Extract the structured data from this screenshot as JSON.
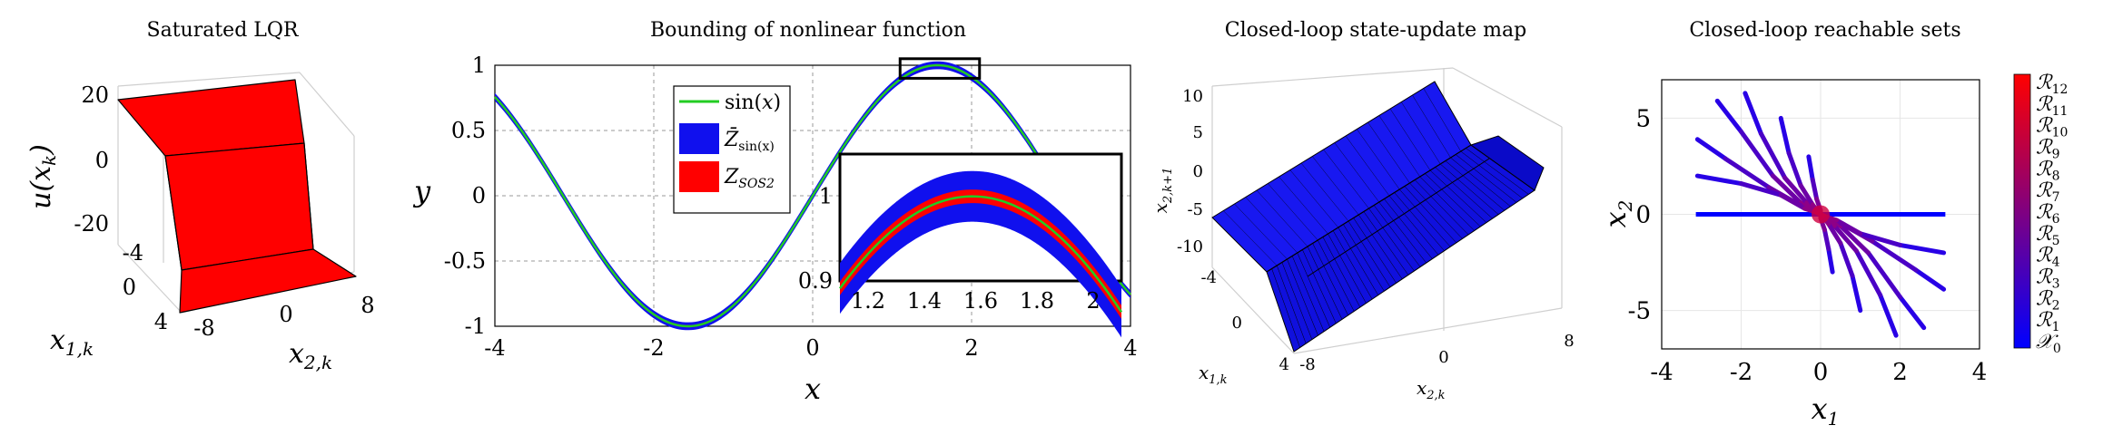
{
  "colors": {
    "red": "#ff0000",
    "blue": "#1010ee",
    "green": "#22cc22",
    "colorbar_top": "#ff0000",
    "colorbar_bottom": "#0000ff"
  },
  "chart_data": [
    {
      "type": "surface",
      "title": "Saturated LQR",
      "zlabel": "u(x_k)",
      "xlabel": "x_{1,k}",
      "ylabel": "x_{2,k}",
      "z_ticks": [
        "20",
        "0",
        "-20"
      ],
      "x1_ticks": [
        "-4",
        "0",
        "4"
      ],
      "x2_ticks": [
        "-8",
        "0",
        "8"
      ],
      "color": "red"
    },
    {
      "type": "line",
      "title": "Bounding of nonlinear function",
      "xlabel": "x",
      "ylabel": "y",
      "xlim": [
        -4,
        4
      ],
      "ylim": [
        -1,
        1
      ],
      "x_ticks": [
        "-4",
        "-2",
        "0",
        "2",
        "4"
      ],
      "y_ticks": [
        "1",
        "0.5",
        "0",
        "-0.5",
        "-1"
      ],
      "grid": true,
      "legend_position": "top-center",
      "series": [
        {
          "name": "sin(x)",
          "function": "sin",
          "color": "green"
        },
        {
          "name": "Z̄_sin(x)",
          "type": "band",
          "halfwidth": 0.03,
          "color": "blue"
        },
        {
          "name": "Z_SOS2",
          "type": "band",
          "halfwidth": 0.008,
          "color": "red"
        }
      ],
      "inset": {
        "xlim": [
          1.1,
          2.1
        ],
        "ylim": [
          0.9,
          1.05
        ],
        "x_ticks": [
          "1.2",
          "1.4",
          "1.6",
          "1.8",
          "2"
        ],
        "y_ticks": [
          "1",
          "0.9"
        ],
        "zoom_box": {
          "x": [
            1.1,
            2.1
          ],
          "y": [
            0.9,
            1.05
          ]
        }
      }
    },
    {
      "type": "surface",
      "title": "Closed-loop state-update map",
      "zlabel": "x_{2,k+1}",
      "xlabel": "x_{1,k}",
      "ylabel": "x_{2,k}",
      "z_ticks": [
        "10",
        "5",
        "0",
        "-5",
        "-10"
      ],
      "x1_ticks": [
        "-4",
        "0",
        "4"
      ],
      "x2_ticks": [
        "-8",
        "0",
        "8"
      ],
      "color": "blue"
    },
    {
      "type": "line",
      "title": "Closed-loop reachable sets",
      "xlabel": "x_1",
      "ylabel": "x_2",
      "xlim": [
        -4,
        4
      ],
      "ylim": [
        -7,
        7
      ],
      "x_ticks": [
        "-4",
        "-2",
        "0",
        "2",
        "4"
      ],
      "y_ticks": [
        "5",
        "0",
        "-5"
      ],
      "grid": true,
      "colorbar_labels": [
        "R12",
        "R11",
        "R10",
        "R9",
        "R8",
        "R7",
        "R6",
        "R5",
        "R4",
        "R3",
        "R2",
        "R1",
        "X0"
      ],
      "initial_set": {
        "x": [
          -3.14,
          3.14
        ],
        "y": 0
      },
      "trajectories": [
        [
          [
            -2.6,
            5.9
          ],
          [
            -2.0,
            4.3
          ],
          [
            -1.2,
            2.0
          ],
          [
            -0.5,
            0.6
          ],
          [
            -0.15,
            0.25
          ],
          [
            0,
            0
          ]
        ],
        [
          [
            -1.9,
            6.3
          ],
          [
            -1.5,
            4.2
          ],
          [
            -0.9,
            1.9
          ],
          [
            -0.35,
            0.6
          ],
          [
            -0.1,
            0.2
          ],
          [
            0,
            0
          ]
        ],
        [
          [
            -3.1,
            3.9
          ],
          [
            -2.4,
            2.9
          ],
          [
            -1.3,
            1.4
          ],
          [
            -0.45,
            0.4
          ],
          [
            -0.1,
            0.1
          ],
          [
            0,
            0
          ]
        ],
        [
          [
            -3.1,
            2.0
          ],
          [
            -2.0,
            1.6
          ],
          [
            -1.0,
            1.0
          ],
          [
            -0.4,
            0.3
          ],
          [
            -0.1,
            0.1
          ],
          [
            0,
            0
          ]
        ],
        [
          [
            -1.0,
            5.0
          ],
          [
            -0.8,
            3.2
          ],
          [
            -0.5,
            1.5
          ],
          [
            -0.2,
            0.5
          ],
          [
            -0.05,
            0.1
          ],
          [
            0,
            0
          ]
        ],
        [
          [
            -0.3,
            3.0
          ],
          [
            -0.2,
            1.8
          ],
          [
            -0.1,
            0.8
          ],
          [
            0,
            0.2
          ],
          [
            0,
            0
          ]
        ],
        [
          [
            2.6,
            -5.9
          ],
          [
            2.0,
            -4.3
          ],
          [
            1.2,
            -2.0
          ],
          [
            0.5,
            -0.6
          ],
          [
            0.15,
            -0.25
          ],
          [
            0,
            0
          ]
        ],
        [
          [
            1.9,
            -6.3
          ],
          [
            1.5,
            -4.2
          ],
          [
            0.9,
            -1.9
          ],
          [
            0.35,
            -0.6
          ],
          [
            0.1,
            -0.2
          ],
          [
            0,
            0
          ]
        ],
        [
          [
            3.1,
            -3.9
          ],
          [
            2.4,
            -2.9
          ],
          [
            1.3,
            -1.4
          ],
          [
            0.45,
            -0.4
          ],
          [
            0.1,
            -0.1
          ],
          [
            0,
            0
          ]
        ],
        [
          [
            3.1,
            -2.0
          ],
          [
            2.0,
            -1.6
          ],
          [
            1.0,
            -1.0
          ],
          [
            0.4,
            -0.3
          ],
          [
            0.1,
            -0.1
          ],
          [
            0,
            0
          ]
        ],
        [
          [
            1.0,
            -5.0
          ],
          [
            0.8,
            -3.2
          ],
          [
            0.5,
            -1.5
          ],
          [
            0.2,
            -0.5
          ],
          [
            0.05,
            -0.1
          ],
          [
            0,
            0
          ]
        ],
        [
          [
            0.3,
            -3.0
          ],
          [
            0.2,
            -1.8
          ],
          [
            0.1,
            -0.8
          ],
          [
            0,
            -0.2
          ],
          [
            0,
            0
          ]
        ]
      ]
    }
  ],
  "text": {
    "p1_title": "Saturated LQR",
    "p2_title": "Bounding of nonlinear function",
    "p3_title": "Closed-loop state-update map",
    "p4_title": "Closed-loop reachable sets"
  }
}
